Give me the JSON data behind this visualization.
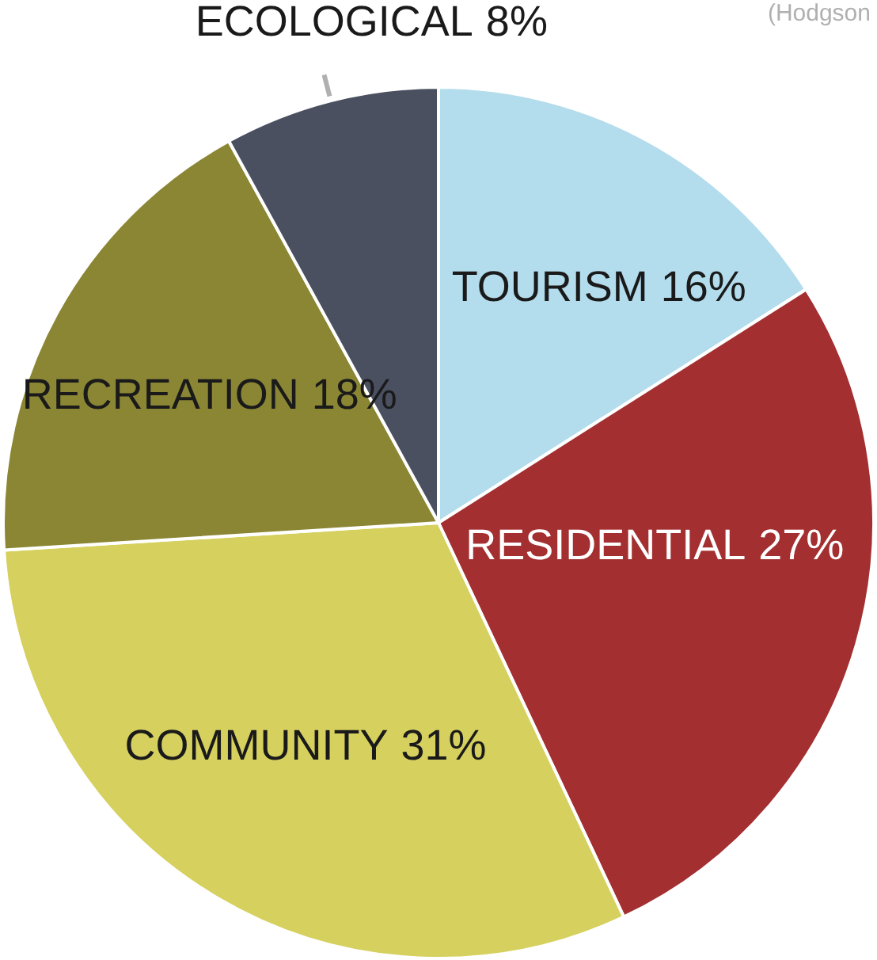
{
  "chart_data": {
    "type": "pie",
    "categories": [
      "TOURISM",
      "RESIDENTIAL",
      "COMMUNITY",
      "RECREATION",
      "ECOLOGICAL"
    ],
    "values": [
      16,
      27,
      31,
      18,
      8
    ],
    "value_labels": [
      "16%",
      "27%",
      "31%",
      "18%",
      "8%"
    ],
    "colors": [
      "#b3dcec",
      "#a32f30",
      "#d6d05e",
      "#8b8634",
      "#4a5060"
    ],
    "legend": false,
    "annotations": [
      "(Hodgson"
    ]
  }
}
